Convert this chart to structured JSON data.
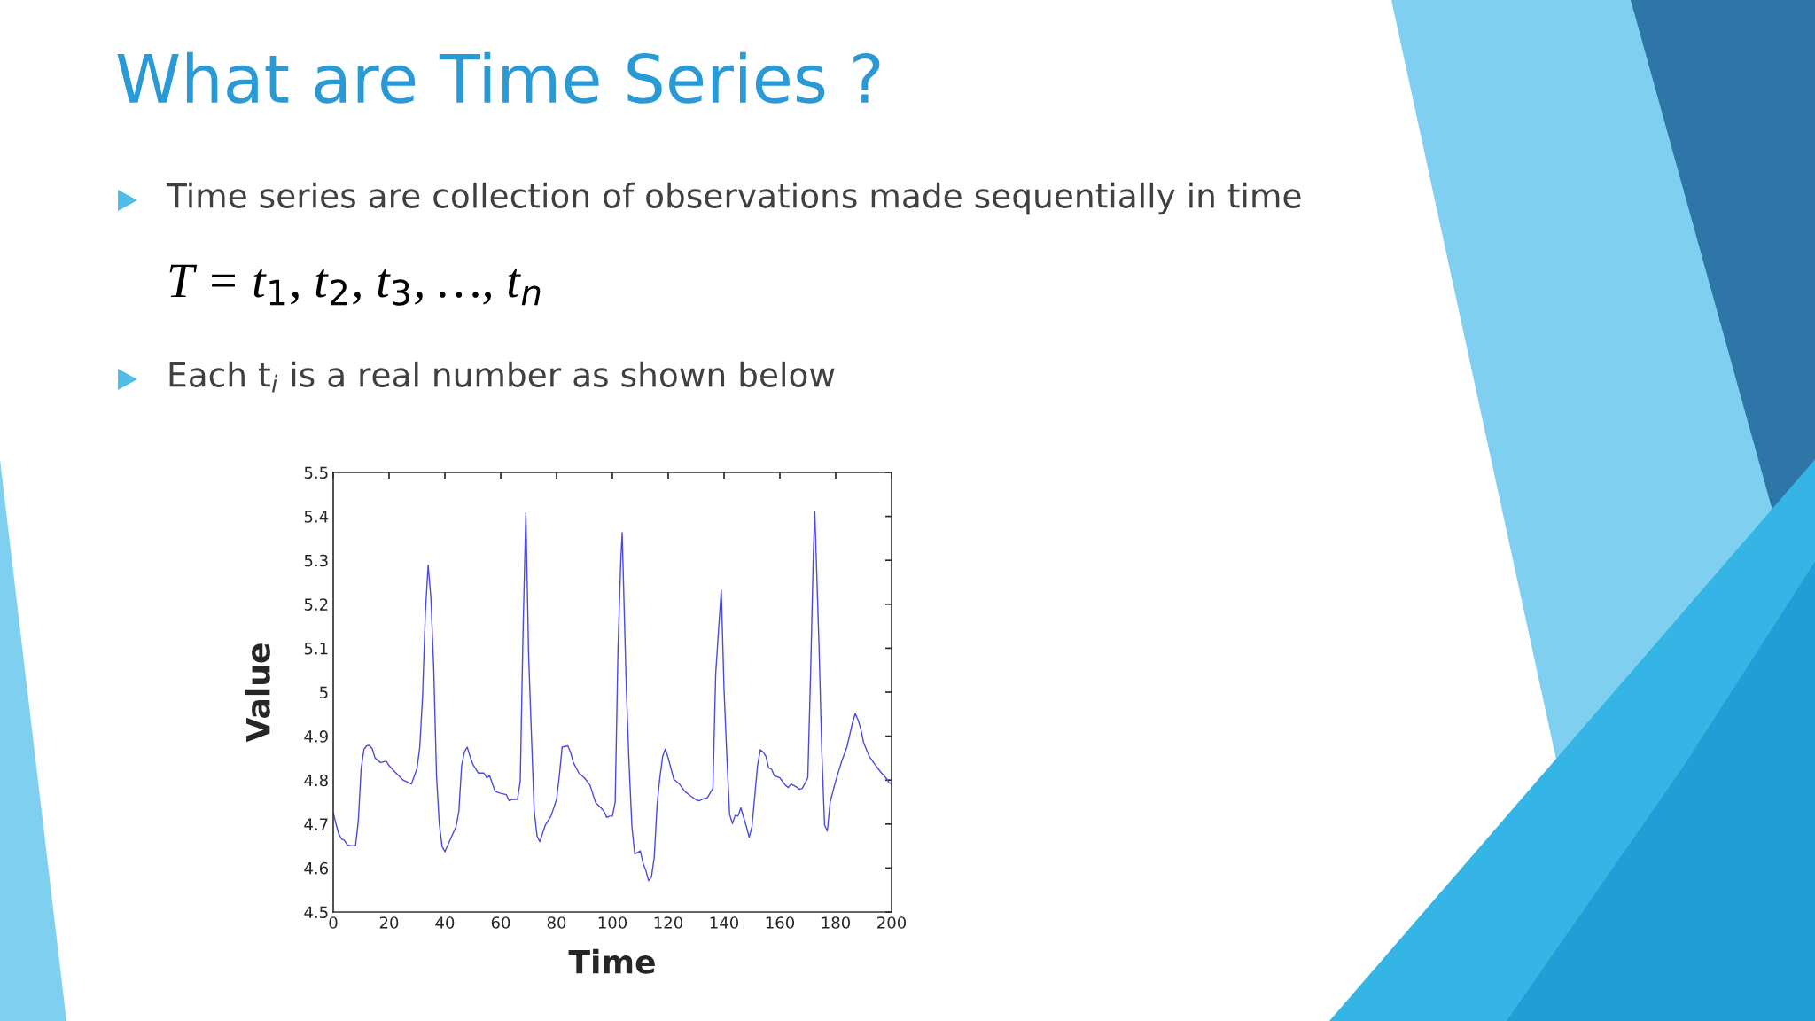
{
  "chart_data": {
    "type": "line",
    "title": "What are Time Series ?",
    "annotations": [
      "Time series are collection of observations made sequentially in time",
      "T = t$_{1}$, t$_{2}$, t$_{3}$, …, t$_{n}$",
      "Each t$_{i}$ is a real number as shown below"
    ],
    "xlabel": "Time",
    "ylabel": "Value",
    "series": [
      {
        "color": "#4a4ae0",
        "x": [
          0,
          1,
          2,
          3,
          4,
          5,
          6,
          8,
          9,
          10,
          11,
          12,
          13,
          14,
          15,
          17,
          19,
          20,
          22,
          23,
          25,
          28,
          30,
          31,
          32,
          33,
          34,
          35,
          36,
          37,
          38,
          39,
          40,
          42,
          44,
          45,
          46,
          47,
          48,
          49,
          50,
          52,
          54,
          55,
          56,
          58,
          60,
          62,
          63,
          64,
          66,
          67,
          68,
          69,
          70,
          71,
          72,
          73,
          74,
          76,
          78,
          80,
          81,
          82,
          84,
          85,
          86,
          88,
          90,
          92,
          94,
          96,
          97,
          98,
          99,
          100,
          101,
          102,
          103,
          103.5,
          105,
          106,
          107,
          108,
          110,
          111,
          112,
          113,
          114,
          115,
          116,
          117,
          118,
          119,
          120,
          122,
          124,
          126,
          128,
          130,
          131,
          132,
          134,
          136,
          137,
          138,
          139,
          140,
          141,
          142,
          143,
          144,
          145,
          146,
          148,
          149,
          150,
          151,
          152,
          153,
          154,
          155,
          156,
          157,
          158,
          160,
          162,
          163,
          164,
          166,
          167,
          168,
          170,
          171,
          172,
          172.5,
          174,
          175,
          176,
          177,
          178,
          180,
          182,
          184,
          186,
          187,
          188,
          189,
          190,
          192,
          194,
          196,
          198,
          199,
          200
        ],
        "values": [
          4.727,
          4.7,
          4.677,
          4.666,
          4.663,
          4.653,
          4.651,
          4.651,
          4.708,
          4.826,
          4.87,
          4.878,
          4.879,
          4.871,
          4.85,
          4.84,
          4.843,
          4.833,
          4.819,
          4.813,
          4.8,
          4.791,
          4.826,
          4.875,
          4.99,
          5.18,
          5.289,
          5.214,
          5.055,
          4.81,
          4.7,
          4.649,
          4.637,
          4.666,
          4.694,
          4.729,
          4.833,
          4.864,
          4.875,
          4.854,
          4.836,
          4.816,
          4.816,
          4.805,
          4.81,
          4.774,
          4.77,
          4.767,
          4.753,
          4.756,
          4.756,
          4.798,
          5.138,
          5.408,
          5.082,
          4.902,
          4.729,
          4.673,
          4.66,
          4.698,
          4.718,
          4.756,
          4.81,
          4.875,
          4.878,
          4.864,
          4.84,
          4.816,
          4.805,
          4.788,
          4.749,
          4.736,
          4.729,
          4.715,
          4.718,
          4.718,
          4.75,
          5.096,
          5.298,
          5.363,
          5.006,
          4.833,
          4.694,
          4.632,
          4.639,
          4.611,
          4.594,
          4.571,
          4.58,
          4.625,
          4.743,
          4.805,
          4.854,
          4.871,
          4.85,
          4.802,
          4.791,
          4.774,
          4.764,
          4.755,
          4.753,
          4.756,
          4.76,
          4.781,
          5.041,
          5.138,
          5.232,
          5.006,
          4.854,
          4.722,
          4.701,
          4.72,
          4.718,
          4.737,
          4.694,
          4.67,
          4.694,
          4.764,
          4.833,
          4.869,
          4.864,
          4.854,
          4.828,
          4.825,
          4.81,
          4.805,
          4.788,
          4.783,
          4.791,
          4.784,
          4.779,
          4.781,
          4.805,
          5.041,
          5.318,
          5.412,
          5.11,
          4.868,
          4.698,
          4.684,
          4.75,
          4.798,
          4.84,
          4.875,
          4.93,
          4.951,
          4.937,
          4.916,
          4.885,
          4.854,
          4.836,
          4.819,
          4.805,
          4.795,
          4.791
        ]
      }
    ],
    "xlim": [
      0,
      200
    ],
    "xticks": [
      0,
      20,
      40,
      60,
      80,
      100,
      120,
      140,
      160,
      180,
      200
    ],
    "ylim": [
      4.5,
      5.5
    ],
    "yticks": [
      4.5,
      4.6,
      4.7,
      4.8,
      4.9,
      {
        "value": 5.0,
        "label": "5"
      },
      5.1,
      5.2,
      5.3,
      5.4,
      5.5
    ],
    "grid": false,
    "legend": false,
    "marker": "none",
    "line_style": "solid"
  }
}
